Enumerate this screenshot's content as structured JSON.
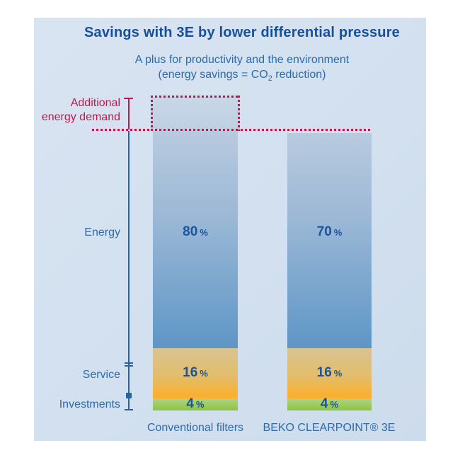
{
  "header": {
    "title": "Savings with 3E by lower differential pressure",
    "subtitle_line1": "A plus for productivity and the environment",
    "subtitle_line2_pre": "(energy savings = CO",
    "subtitle_line2_sub": "2",
    "subtitle_line2_post": " reduction)"
  },
  "annotation": {
    "line1": "Additional",
    "line2": "energy demand"
  },
  "rows": {
    "energy": "Energy",
    "service": "Service",
    "investments": "Investments"
  },
  "bars": [
    {
      "label": "Conventional filters",
      "energy": "80",
      "service": "16",
      "investments": "4"
    },
    {
      "label": "BEKO CLEARPOINT® 3E",
      "energy": "70",
      "service": "16",
      "investments": "4"
    }
  ],
  "unit": "%",
  "colors": {
    "panel_bg": "#d4e1f0",
    "title_blue": "#16509c",
    "label_blue": "#2a6cad",
    "value_blue": "#1a539e",
    "axis_blue": "#2365a8",
    "accent_red": "#c4174d",
    "bar_blue_top": "#b9cadf",
    "bar_blue_bottom": "#5e96c6",
    "service_tan_top": "#d9c291",
    "service_orange_bottom": "#f9b033",
    "invest_green_top": "#b2d285",
    "invest_green_bottom": "#8bc53f"
  },
  "chart_data": {
    "type": "bar",
    "stacked": true,
    "categories": [
      "Conventional filters",
      "BEKO CLEARPOINT® 3E"
    ],
    "series": [
      {
        "name": "Energy",
        "values": [
          80,
          70
        ]
      },
      {
        "name": "Service",
        "values": [
          16,
          16
        ]
      },
      {
        "name": "Investments",
        "values": [
          4,
          4
        ]
      }
    ],
    "unit": "%",
    "title": "Savings with 3E by lower differential pressure",
    "subtitle": "A plus for productivity and the environment (energy savings = CO2 reduction)",
    "annotations": [
      "Additional energy demand shown as red dotted box above the Conventional filters bar, with a red dotted threshold line at the BEKO CLEARPOINT 3E bar top"
    ],
    "legend_position": "left-axis-labels",
    "grid": false
  }
}
